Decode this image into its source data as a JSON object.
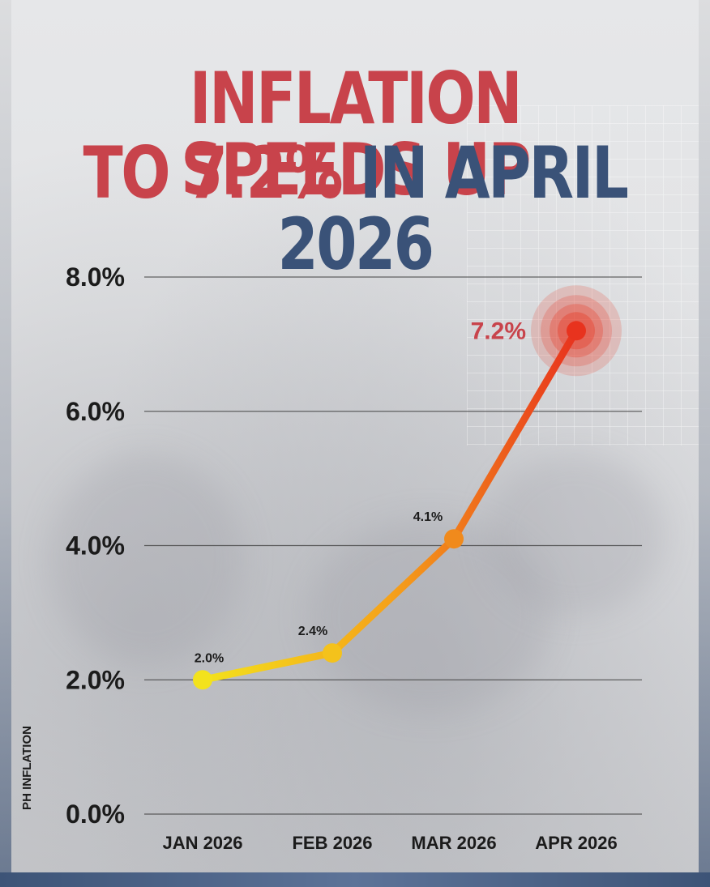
{
  "headline": {
    "line1": "INFLATION SPEEDS UP",
    "line2_part1": "TO 7.2%",
    "line2_part2": "IN APRIL 2026"
  },
  "colors": {
    "headline_red": "#c8434b",
    "headline_blue": "#3a5278",
    "line_start": "#f3e21c",
    "line_mid": "#f5a21a",
    "line_end": "#e8331e",
    "highlight_label": "#c8434b"
  },
  "chart_data": {
    "type": "line",
    "categories": [
      "JAN 2026",
      "FEB 2026",
      "MAR 2026",
      "APR 2026"
    ],
    "values": [
      2.0,
      2.4,
      4.1,
      7.2
    ],
    "data_labels": [
      "2.0%",
      "2.4%",
      "4.1%",
      "7.2%"
    ],
    "y_ticks": [
      0,
      2,
      4,
      6,
      8
    ],
    "y_tick_labels": [
      "0.0%",
      "2.0%",
      "4.0%",
      "6.0%",
      "8.0%"
    ],
    "ylim": [
      0,
      8
    ],
    "ylabel": "PH INFLATION",
    "xlabel": "",
    "grid": true,
    "highlight_last_point": true
  }
}
